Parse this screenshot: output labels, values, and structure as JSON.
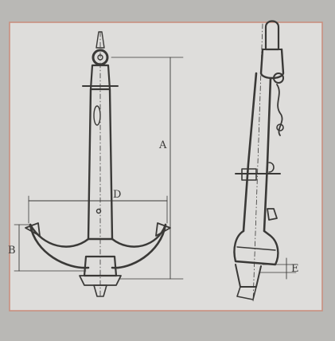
{
  "figure": {
    "border_color": "#c9907f",
    "paper_color": "#dedddb",
    "background_color": "#b9b8b5",
    "ink_color": "#3a3937"
  },
  "dimensions": {
    "a": "A",
    "b": "B",
    "d": "D",
    "e": "E"
  }
}
